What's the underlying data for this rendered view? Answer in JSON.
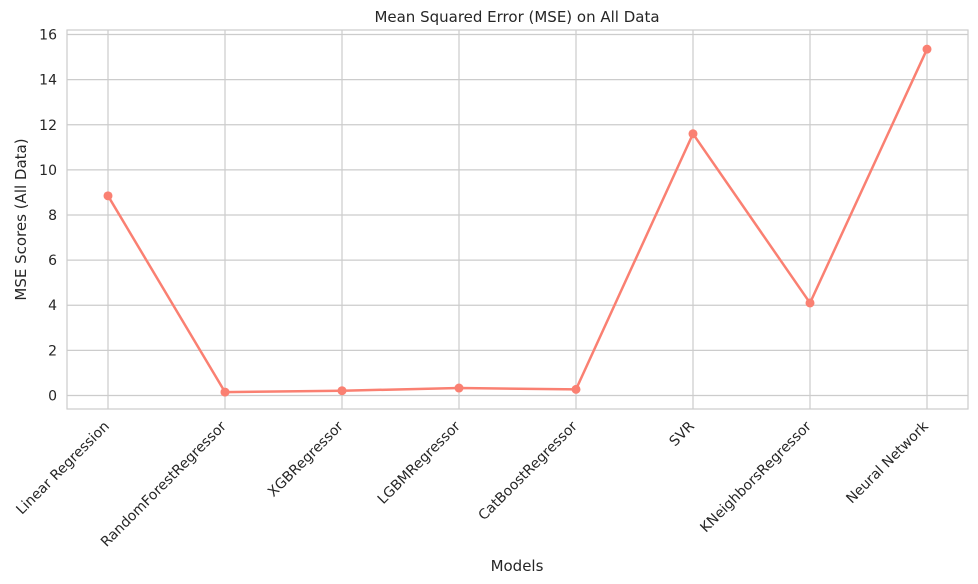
{
  "chart_data": {
    "type": "line",
    "title": "Mean Squared Error (MSE) on All Data",
    "xlabel": "Models",
    "ylabel": "MSE Scores (All Data)",
    "categories": [
      "Linear Regression",
      "RandomForestRegressor",
      "XGBRegressor",
      "LGBMRegressor",
      "CatBoostRegressor",
      "SVR",
      "KNeighborsRegressor",
      "Neural Network"
    ],
    "values": [
      8.85,
      0.15,
      0.21,
      0.33,
      0.27,
      11.6,
      4.1,
      15.35
    ],
    "ylim": [
      -0.6,
      16.2
    ],
    "yticks": [
      0,
      2,
      4,
      6,
      8,
      10,
      12,
      14,
      16
    ],
    "grid": true,
    "line_color": "#fa8072"
  }
}
